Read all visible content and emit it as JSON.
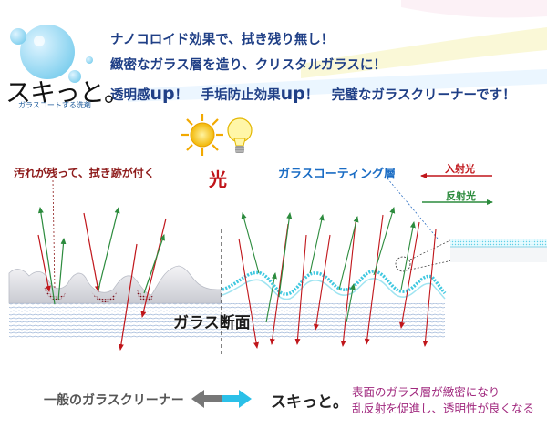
{
  "headline": {
    "line1": "ナノコロイド効果で、拭き残り無し！",
    "line2": "緻密なガラス層を造り、クリスタルガラスに！",
    "line3_a": "透明感",
    "line3_up1": "up",
    "line3_b": "！　手垢防止効果",
    "line3_up2": "up",
    "line3_c": "！　完璧なガラスクリーナーです！"
  },
  "logo": {
    "main": "スキっと。",
    "sub": "ガラスコートする洗剤"
  },
  "diagram": {
    "light_label": "光",
    "coating_label": "ガラスコーティング層",
    "dirty_label": "汚れが残って、拭き跡が付く",
    "incident_label": "入射光",
    "reflected_label": "反射光",
    "section_label": "ガラス断面",
    "general_label": "一般のガラスクリーナー",
    "product_label": "スキっと。",
    "desc_line1": "表面のガラス層が緻密になり",
    "desc_line2": "乱反射を促進し、透明性が良くなる"
  },
  "colors": {
    "headline": "#1f3f86",
    "incident": "#c0151a",
    "reflected": "#2c8b3d",
    "coating": "#3fc8e0",
    "description": "#a0287e"
  },
  "icons": [
    "sun-icon",
    "light-bulb-icon",
    "bubble-logo-icon",
    "double-arrow-icon"
  ]
}
